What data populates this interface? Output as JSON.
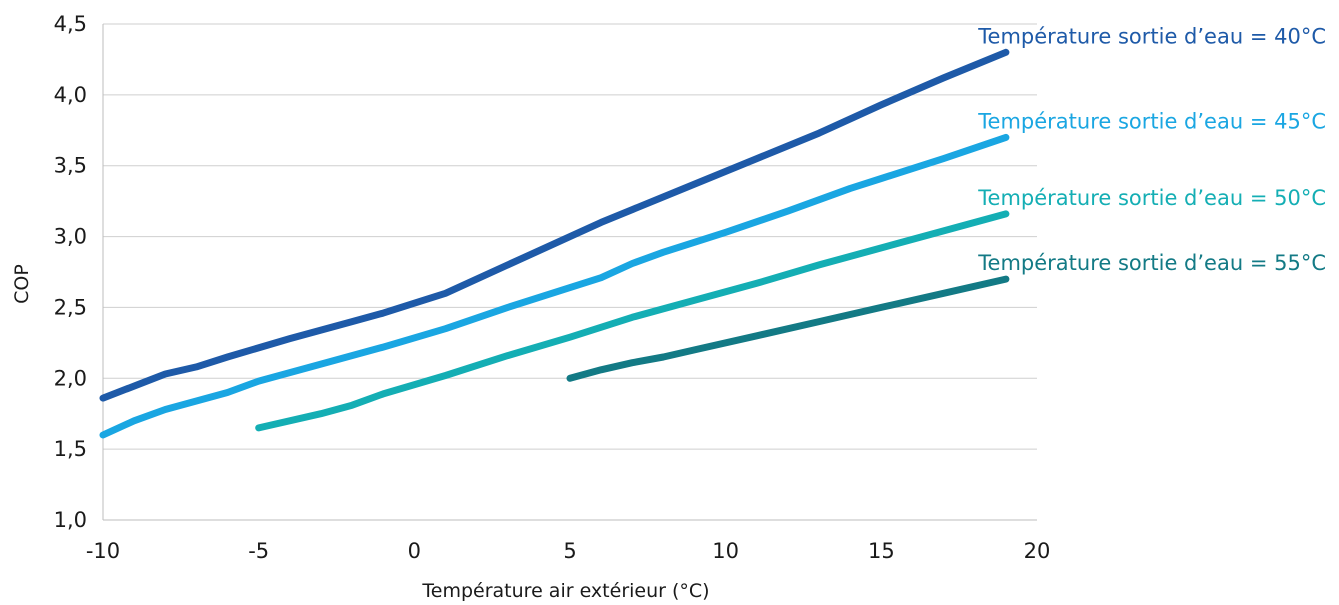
{
  "chart_data": {
    "type": "line",
    "title": "",
    "xlabel": "Température air extérieur (°C)",
    "ylabel": "COP",
    "xlim": [
      -10,
      20
    ],
    "ylim": [
      1.0,
      4.5
    ],
    "x_ticks": [
      -10,
      -5,
      0,
      5,
      10,
      15,
      20
    ],
    "x_tick_labels": [
      "-10",
      "-5",
      "0",
      "5",
      "10",
      "15",
      "20"
    ],
    "y_ticks": [
      1.0,
      1.5,
      2.0,
      2.5,
      3.0,
      3.5,
      4.0,
      4.5
    ],
    "y_tick_labels": [
      "1,0",
      "1,5",
      "2,0",
      "2,5",
      "3,0",
      "3,5",
      "4,0",
      "4,5"
    ],
    "grid": "horizontal",
    "legend": "inline labels at right end of lines",
    "series": [
      {
        "name": "Température sortie d’eau = 40°C",
        "color": "#1e5aa8",
        "x": [
          -10,
          -8,
          -7,
          -6,
          -4,
          -2,
          -1,
          0,
          1,
          3,
          5,
          6,
          7,
          9,
          11,
          13,
          15,
          17,
          19
        ],
        "y": [
          1.86,
          2.03,
          2.08,
          2.15,
          2.28,
          2.4,
          2.46,
          2.53,
          2.6,
          2.8,
          3.0,
          3.1,
          3.19,
          3.37,
          3.55,
          3.73,
          3.93,
          4.12,
          4.3
        ]
      },
      {
        "name": "Température sortie d’eau = 45°C",
        "color": "#1aa6e2",
        "x": [
          -10,
          -9,
          -8,
          -6,
          -5,
          -3,
          -1,
          1,
          3,
          5,
          6,
          7,
          8,
          10,
          12,
          14,
          15,
          17,
          19
        ],
        "y": [
          1.6,
          1.7,
          1.78,
          1.9,
          1.98,
          2.1,
          2.22,
          2.35,
          2.5,
          2.64,
          2.71,
          2.81,
          2.89,
          3.03,
          3.18,
          3.34,
          3.41,
          3.55,
          3.7
        ]
      },
      {
        "name": "Température sortie d’eau = 50°C",
        "color": "#14aeb4",
        "x": [
          -5,
          -3,
          -2,
          -1,
          1,
          3,
          5,
          7,
          9,
          11,
          13,
          15,
          17,
          19
        ],
        "y": [
          1.65,
          1.75,
          1.81,
          1.89,
          2.02,
          2.16,
          2.29,
          2.43,
          2.55,
          2.67,
          2.8,
          2.92,
          3.04,
          3.16
        ]
      },
      {
        "name": "Température sortie d’eau = 55°C",
        "color": "#137a85",
        "x": [
          5,
          6,
          7,
          8,
          9,
          11,
          13,
          15,
          17,
          19
        ],
        "y": [
          2.0,
          2.06,
          2.11,
          2.15,
          2.2,
          2.3,
          2.4,
          2.5,
          2.6,
          2.7
        ]
      }
    ]
  }
}
